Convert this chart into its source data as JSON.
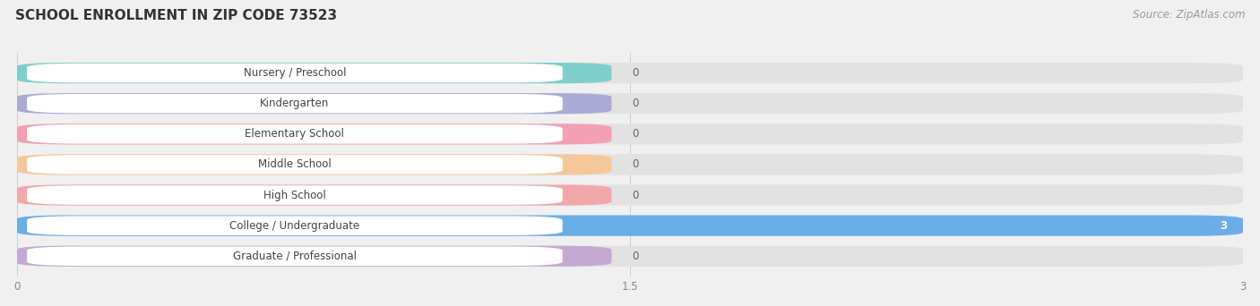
{
  "title": "SCHOOL ENROLLMENT IN ZIP CODE 73523",
  "source_text": "Source: ZipAtlas.com",
  "categories": [
    "Nursery / Preschool",
    "Kindergarten",
    "Elementary School",
    "Middle School",
    "High School",
    "College / Undergraduate",
    "Graduate / Professional"
  ],
  "values": [
    0,
    0,
    0,
    0,
    0,
    3,
    0
  ],
  "bar_colors": [
    "#7ecfcc",
    "#aaabd5",
    "#f2a0b2",
    "#f5c899",
    "#f2a8aa",
    "#6aaee8",
    "#c4aad2"
  ],
  "xlim": [
    0,
    3
  ],
  "xticks": [
    0,
    1.5,
    3
  ],
  "background_color": "#f0f0f0",
  "title_fontsize": 11,
  "source_fontsize": 8.5,
  "label_fontsize": 8.5,
  "value_fontsize": 8.5
}
